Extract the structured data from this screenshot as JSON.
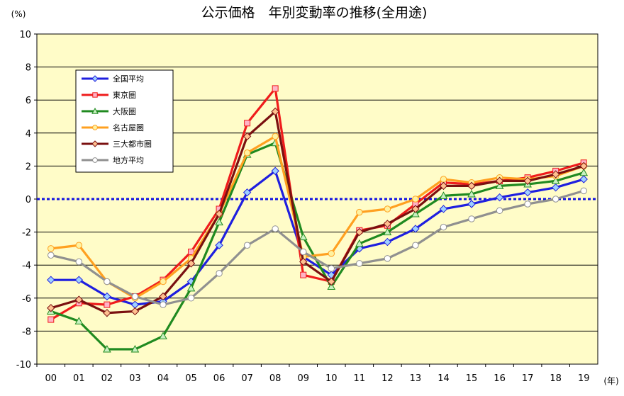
{
  "chart_data": {
    "type": "line",
    "title": "公示価格　年別変動率の推移(全用途)",
    "y_unit": "(%)",
    "x_unit": "(年)",
    "categories": [
      "00",
      "01",
      "02",
      "03",
      "04",
      "05",
      "06",
      "07",
      "08",
      "09",
      "10",
      "11",
      "12",
      "13",
      "14",
      "15",
      "16",
      "17",
      "18",
      "19"
    ],
    "ylim": [
      -10,
      10
    ],
    "yticks": [
      -10,
      -8,
      -6,
      -4,
      -2,
      0,
      2,
      4,
      6,
      8,
      10
    ],
    "grid": true,
    "zero_line": true,
    "legend_position": "top-left",
    "series": [
      {
        "name": "全国平均",
        "color": "#1f1fdf",
        "marker": "diamond",
        "marker_fill": "#9fd0ff",
        "values": [
          -4.9,
          -4.9,
          -5.9,
          -6.4,
          -6.2,
          -5.0,
          -2.8,
          0.4,
          1.7,
          -3.5,
          -4.6,
          -3.0,
          -2.6,
          -1.8,
          -0.6,
          -0.3,
          0.1,
          0.4,
          0.7,
          1.2
        ]
      },
      {
        "name": "東京圏",
        "color": "#ef1c1c",
        "marker": "square",
        "marker_fill": "#ffb3c6",
        "values": [
          -7.3,
          -6.3,
          -6.4,
          -5.9,
          -4.9,
          -3.2,
          -0.6,
          4.6,
          6.7,
          -4.6,
          -5.0,
          -1.9,
          -1.6,
          -0.3,
          1.0,
          0.9,
          1.1,
          1.3,
          1.7,
          2.2
        ]
      },
      {
        "name": "大阪圏",
        "color": "#208a20",
        "marker": "triangle",
        "marker_fill": "#c8f0c0",
        "values": [
          -6.8,
          -7.4,
          -9.1,
          -9.1,
          -8.3,
          -5.4,
          -1.4,
          2.7,
          3.4,
          -2.3,
          -5.3,
          -2.7,
          -2.0,
          -0.9,
          0.2,
          0.3,
          0.8,
          0.9,
          1.1,
          1.6
        ]
      },
      {
        "name": "名古屋圏",
        "color": "#ffa020",
        "marker": "circle",
        "marker_fill": "#fff2a0",
        "values": [
          -3.0,
          -2.8,
          -5.0,
          -6.0,
          -5.0,
          -3.6,
          -0.9,
          2.8,
          3.8,
          -3.5,
          -3.3,
          -0.8,
          -0.6,
          0.0,
          1.2,
          1.0,
          1.3,
          1.2,
          1.4,
          2.0
        ]
      },
      {
        "name": "三大都市圏",
        "color": "#7a1010",
        "marker": "diamond",
        "marker_fill": "#ffc090",
        "values": [
          -6.6,
          -6.1,
          -6.9,
          -6.8,
          -5.9,
          -3.9,
          -0.9,
          3.8,
          5.3,
          -3.8,
          -5.0,
          -2.0,
          -1.5,
          -0.6,
          0.8,
          0.8,
          1.1,
          1.1,
          1.5,
          2.0
        ]
      },
      {
        "name": "地方平均",
        "color": "#909090",
        "marker": "circle",
        "marker_fill": "#ffffff",
        "values": [
          -3.4,
          -3.8,
          -5.0,
          -5.9,
          -6.4,
          -6.0,
          -4.5,
          -2.8,
          -1.8,
          -3.2,
          -4.2,
          -3.9,
          -3.6,
          -2.8,
          -1.7,
          -1.2,
          -0.7,
          -0.3,
          0.0,
          0.5
        ]
      }
    ]
  }
}
